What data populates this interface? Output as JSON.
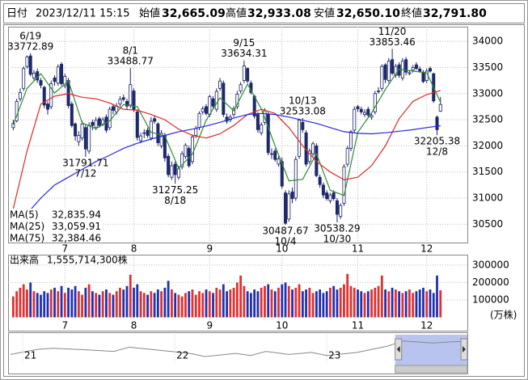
{
  "header": {
    "date_label": "日付",
    "date": "2023/12/11 15:15",
    "items": [
      {
        "label": "始値",
        "value": "32,665.09",
        "color": "#000000"
      },
      {
        "label": "高値",
        "value": "32,933.08",
        "color": "#e00000"
      },
      {
        "label": "安値",
        "value": "32,650.10",
        "color": "#008000"
      },
      {
        "label": "終値",
        "value": "32,791.80",
        "color": "#000000"
      }
    ]
  },
  "chart_data": {
    "type": "candlestick",
    "up_color": "#ffffff",
    "down_color": "#1c2a6e",
    "edge_color": "#1c2566",
    "grid": true,
    "ylim": [
      30150,
      34280
    ],
    "yticks": [
      30500,
      31000,
      31500,
      32000,
      32500,
      33000,
      33500,
      34000
    ],
    "xlim": [
      -1.5,
      131.8
    ],
    "xticks": [
      {
        "value": 15,
        "label": "7"
      },
      {
        "value": 35,
        "label": "8"
      },
      {
        "value": 57,
        "label": "9"
      },
      {
        "value": 78,
        "label": "10"
      },
      {
        "value": 100,
        "label": "11"
      },
      {
        "value": 120,
        "label": "12"
      }
    ],
    "open": [
      32350,
      32480,
      32900,
      33100,
      33520,
      33720,
      33300,
      33420,
      33250,
      33120,
      32800,
      32750,
      33300,
      33200,
      33560,
      33150,
      33250,
      32800,
      32420,
      32080,
      32150,
      32350,
      31900,
      32450,
      32350,
      32520,
      32420,
      32550,
      32350,
      32750,
      32650,
      32800,
      32920,
      32850,
      32780,
      33050,
      32650,
      32100,
      32250,
      32300,
      32150,
      32520,
      32420,
      32000,
      32200,
      31800,
      31400,
      31650,
      31400,
      31600,
      31800,
      31950,
      31700,
      32200,
      32350,
      32650,
      32750,
      32600,
      32900,
      32700,
      33100,
      33200,
      32550,
      32500,
      32600,
      32750,
      33050,
      33250,
      33480,
      33200,
      32950,
      32600,
      32250,
      32450,
      32600,
      31850,
      31900,
      31650,
      31700,
      31100,
      30600,
      31120,
      31000,
      31800,
      32450,
      32250,
      31700,
      31850,
      32000,
      31400,
      31250,
      31100,
      30950,
      31100,
      30950,
      30650,
      30900,
      31650,
      31950,
      32300,
      32750,
      32700,
      32600,
      32700,
      32550,
      32650,
      33050,
      33100,
      33550,
      33250,
      33650,
      33350,
      33550,
      33300,
      33650,
      33380,
      33450,
      33550,
      33470,
      33400,
      33250,
      33480,
      33380,
      32550,
      32665.09
    ],
    "high": [
      32500,
      32900,
      33100,
      33520,
      33730,
      33772.89,
      33450,
      33480,
      33300,
      33150,
      32850,
      33250,
      33350,
      33560,
      33600,
      33380,
      33300,
      32850,
      32450,
      32280,
      32480,
      32400,
      32450,
      32500,
      32550,
      32560,
      32550,
      32600,
      32750,
      32800,
      32820,
      32950,
      32980,
      32900,
      33488.77,
      33100,
      32700,
      32250,
      32320,
      32350,
      32550,
      32580,
      32450,
      32300,
      32250,
      31850,
      31700,
      31700,
      31620,
      31900,
      32050,
      32000,
      32220,
      32380,
      32660,
      32760,
      32800,
      32980,
      32950,
      33100,
      33300,
      33250,
      32620,
      32600,
      32760,
      33050,
      33220,
      33634.31,
      33500,
      33250,
      32980,
      32650,
      32450,
      32720,
      32650,
      31950,
      31950,
      31800,
      31780,
      31150,
      31150,
      31200,
      31800,
      32520,
      32533.08,
      32300,
      31950,
      32080,
      32050,
      31450,
      31300,
      31150,
      31100,
      31150,
      31000,
      30900,
      31650,
      32000,
      32300,
      32750,
      32780,
      32750,
      32700,
      32750,
      32620,
      33050,
      33120,
      33560,
      33580,
      33680,
      33853.46,
      33570,
      33600,
      33680,
      33700,
      33450,
      33550,
      33600,
      33520,
      33450,
      33480,
      33520,
      33400,
      32580,
      32933.08
    ],
    "low": [
      32300,
      32450,
      32850,
      33050,
      33480,
      33330,
      33250,
      33200,
      33100,
      32720,
      32600,
      32700,
      33150,
      33150,
      33150,
      33100,
      32720,
      32350,
      32100,
      32000,
      32100,
      31791.71,
      31850,
      32300,
      32300,
      32350,
      32380,
      32250,
      32300,
      32600,
      32600,
      32750,
      32850,
      32700,
      32720,
      32650,
      32100,
      32050,
      32150,
      32150,
      32100,
      32420,
      32000,
      31950,
      31700,
      31400,
      31350,
      31275.25,
      31350,
      31550,
      31750,
      31580,
      31650,
      32150,
      32300,
      32600,
      32580,
      32550,
      32700,
      32650,
      33050,
      32550,
      32420,
      32450,
      32550,
      32700,
      33000,
      33200,
      33200,
      32980,
      32520,
      32250,
      32200,
      32400,
      31820,
      31750,
      31700,
      31600,
      31180,
      30487.67,
      30550,
      30900,
      30950,
      31750,
      32250,
      31600,
      31650,
      31800,
      31400,
      31200,
      31000,
      30950,
      30900,
      30950,
      30538.29,
      30600,
      30850,
      31600,
      31900,
      32250,
      32650,
      32600,
      32550,
      32550,
      32500,
      32600,
      33000,
      33050,
      33200,
      33200,
      33350,
      33300,
      33300,
      33250,
      33350,
      33350,
      33400,
      33450,
      33400,
      33200,
      33200,
      33400,
      32820,
      32205.38,
      32650.1
    ],
    "close": [
      32430,
      32850,
      33020,
      33480,
      33700,
      33370,
      33390,
      33260,
      33160,
      32780,
      32700,
      33190,
      33230,
      33510,
      33190,
      33330,
      32770,
      32390,
      32190,
      32200,
      32420,
      31940,
      32390,
      32390,
      32490,
      32390,
      32500,
      32300,
      32700,
      32680,
      32760,
      32890,
      32890,
      32760,
      33170,
      32700,
      32160,
      32190,
      32250,
      32200,
      32470,
      32470,
      32060,
      32240,
      31770,
      31450,
      31620,
      31450,
      31560,
      31850,
      32010,
      31620,
      32170,
      32330,
      32620,
      32710,
      32620,
      32940,
      32760,
      33040,
      33240,
      32600,
      32470,
      32550,
      32710,
      32990,
      33170,
      33530,
      33240,
      33020,
      32570,
      32310,
      32400,
      32670,
      31870,
      31850,
      31740,
      31750,
      31230,
      30520,
      31080,
      30990,
      31740,
      32490,
      32310,
      31650,
      31900,
      32040,
      31430,
      31260,
      31060,
      30990,
      31060,
      30990,
      30690,
      30860,
      31600,
      31950,
      32270,
      32700,
      32710,
      32650,
      32640,
      32590,
      32580,
      33000,
      33050,
      33520,
      33270,
      33620,
      33390,
      33520,
      33350,
      33620,
      33410,
      33400,
      33500,
      33480,
      33430,
      33230,
      33430,
      33430,
      32860,
      32310,
      32791.8
    ],
    "annotations": [
      {
        "date": "6/19",
        "price": 33772.89
      },
      {
        "date": "7/12",
        "price": 31791.71
      },
      {
        "date": "8/1",
        "price": 33488.77
      },
      {
        "date": "8/18",
        "price": 31275.25
      },
      {
        "date": "9/15",
        "price": 33634.31
      },
      {
        "date": "10/4",
        "price": 30487.67
      },
      {
        "date": "10/13",
        "price": 32533.08
      },
      {
        "date": "10/30",
        "price": 30538.29
      },
      {
        "date": "11/20",
        "price": 33853.46
      },
      {
        "date": "12/8",
        "price": 32205.38
      }
    ],
    "moving_averages": {
      "x": [
        0,
        4,
        8,
        12,
        16,
        20,
        24,
        28,
        32,
        36,
        40,
        44,
        48,
        52,
        56,
        60,
        64,
        68,
        72,
        76,
        80,
        84,
        88,
        92,
        96,
        100,
        104,
        108,
        112,
        116,
        120,
        124
      ],
      "series": [
        {
          "name": "MA(5)",
          "color": "#2e8b2e",
          "value_label": "32,835.94",
          "values": [
            32400,
            33100,
            33380,
            33010,
            33240,
            32440,
            32330,
            32480,
            32790,
            32750,
            32260,
            32190,
            31570,
            31840,
            32490,
            32920,
            32670,
            33180,
            32710,
            32000,
            31330,
            31360,
            31850,
            31150,
            31050,
            32260,
            32630,
            33080,
            33470,
            33430,
            33400,
            32835.94
          ]
        },
        {
          "name": "MA(25)",
          "color": "#e02828",
          "value_label": "33,059.91",
          "values": [
            30800,
            31900,
            32800,
            32950,
            33000,
            32930,
            32900,
            32820,
            32700,
            32680,
            32600,
            32500,
            32320,
            32200,
            32150,
            32230,
            32390,
            32600,
            32700,
            32620,
            32350,
            32000,
            31700,
            31500,
            31350,
            31400,
            31620,
            32000,
            32520,
            32850,
            32980,
            33059.91
          ]
        },
        {
          "name": "MA(75)",
          "color": "#2828e0",
          "value_label": "32,384.46",
          "values": [
            30300,
            30700,
            31000,
            31250,
            31400,
            31550,
            31700,
            31820,
            31950,
            32050,
            32130,
            32200,
            32270,
            32320,
            32380,
            32450,
            32530,
            32600,
            32620,
            32600,
            32550,
            32490,
            32430,
            32350,
            32270,
            32240,
            32230,
            32250,
            32280,
            32310,
            32350,
            32384.46
          ]
        }
      ]
    },
    "volume": {
      "title": "出来高",
      "total": "1,555,714,300株",
      "unit": "(万株)",
      "up_color": "#e03030",
      "down_color": "#2030b0",
      "ylim": [
        0,
        346000
      ],
      "yticks": [
        100000,
        200000,
        300000
      ],
      "values": [
        120000,
        150000,
        170000,
        190000,
        160000,
        200000,
        150000,
        140000,
        130000,
        150000,
        140000,
        160000,
        170000,
        150000,
        180000,
        140000,
        170000,
        160000,
        180000,
        150000,
        130000,
        170000,
        190000,
        150000,
        140000,
        130000,
        150000,
        160000,
        140000,
        130000,
        150000,
        170000,
        160000,
        180000,
        245000,
        170000,
        190000,
        150000,
        140000,
        130000,
        150000,
        140000,
        160000,
        150000,
        170000,
        210000,
        160000,
        140000,
        130000,
        120000,
        140000,
        150000,
        160000,
        130000,
        150000,
        140000,
        160000,
        150000,
        140000,
        170000,
        160000,
        190000,
        150000,
        160000,
        170000,
        200000,
        240000,
        180000,
        150000,
        140000,
        160000,
        150000,
        170000,
        180000,
        190000,
        160000,
        150000,
        170000,
        190000,
        200000,
        180000,
        160000,
        170000,
        190000,
        150000,
        160000,
        170000,
        140000,
        150000,
        160000,
        140000,
        150000,
        170000,
        180000,
        160000,
        170000,
        190000,
        250000,
        180000,
        170000,
        160000,
        150000,
        140000,
        150000,
        160000,
        170000,
        180000,
        240000,
        160000,
        150000,
        170000,
        160000,
        150000,
        140000,
        150000,
        160000,
        140000,
        150000,
        160000,
        170000,
        150000,
        160000,
        140000,
        240000,
        155571.43
      ]
    },
    "navigator": {
      "color": "#888888",
      "selection_color": "#b8c4ee",
      "xlim": [
        2020.904,
        2023.925
      ],
      "ylim": [
        22000,
        36000
      ],
      "xticks": [
        {
          "value": 2021,
          "label": "21"
        },
        {
          "value": 2022,
          "label": "22"
        },
        {
          "value": 2023,
          "label": "23"
        }
      ],
      "selection": [
        2023.45,
        2023.925
      ],
      "x": [
        2020.92,
        2021.1,
        2021.2,
        2021.4,
        2021.6,
        2021.7,
        2021.9,
        2022.1,
        2022.2,
        2022.4,
        2022.5,
        2022.6,
        2022.75,
        2022.9,
        2023.0,
        2023.2,
        2023.4,
        2023.5,
        2023.7,
        2023.8,
        2023.9
      ],
      "values": [
        26500,
        29000,
        29500,
        28800,
        28000,
        30000,
        28500,
        27000,
        25500,
        27000,
        26000,
        28000,
        26500,
        27500,
        26000,
        27500,
        30500,
        33000,
        32000,
        32500,
        32800
      ]
    }
  }
}
